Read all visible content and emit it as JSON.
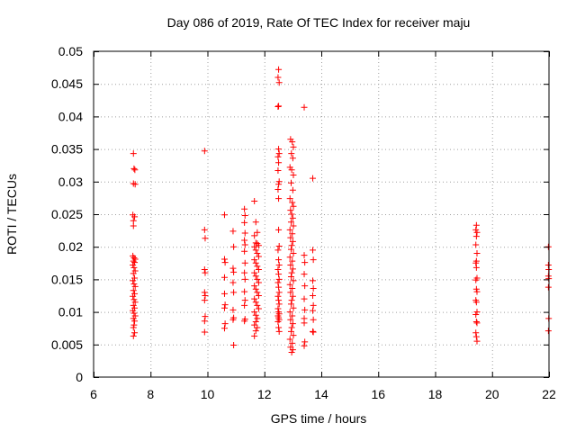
{
  "chart_data": {
    "type": "scatter",
    "title": "Day 086 of 2019, Rate Of TEC Index for receiver maju",
    "xlabel": "GPS time / hours",
    "ylabel": "ROTI / TECUs",
    "xlim": [
      6,
      22
    ],
    "ylim": [
      0,
      0.05
    ],
    "grid": true,
    "marker": "plus",
    "color": "#ff0000",
    "x_ticks": [
      6,
      8,
      10,
      12,
      14,
      16,
      18,
      20,
      22
    ],
    "x_tick_labels": [
      "6",
      "8",
      "10",
      "12",
      "14",
      "16",
      "18",
      "20",
      "22"
    ],
    "y_ticks": [
      0,
      0.005,
      0.01,
      0.015,
      0.02,
      0.025,
      0.03,
      0.035,
      0.04,
      0.045,
      0.05
    ],
    "y_tick_labels": [
      "0",
      "0.005",
      "0.01",
      "0.015",
      "0.02",
      "0.025",
      "0.03",
      "0.035",
      "0.04",
      "0.045",
      "0.05"
    ],
    "series": [
      {
        "name": "ROTI",
        "points": [
          [
            7.4,
            0.0343
          ],
          [
            7.42,
            0.032
          ],
          [
            7.45,
            0.0318
          ],
          [
            7.4,
            0.0297
          ],
          [
            7.46,
            0.0296
          ],
          [
            7.38,
            0.0249
          ],
          [
            7.44,
            0.0246
          ],
          [
            7.4,
            0.024
          ],
          [
            7.4,
            0.0232
          ],
          [
            7.38,
            0.0186
          ],
          [
            7.42,
            0.0183
          ],
          [
            7.46,
            0.0181
          ],
          [
            7.4,
            0.0178
          ],
          [
            7.44,
            0.0176
          ],
          [
            7.38,
            0.0172
          ],
          [
            7.42,
            0.0168
          ],
          [
            7.46,
            0.0163
          ],
          [
            7.4,
            0.0159
          ],
          [
            7.44,
            0.0152
          ],
          [
            7.38,
            0.0148
          ],
          [
            7.42,
            0.0143
          ],
          [
            7.46,
            0.0139
          ],
          [
            7.4,
            0.0133
          ],
          [
            7.44,
            0.0128
          ],
          [
            7.38,
            0.0124
          ],
          [
            7.42,
            0.0119
          ],
          [
            7.46,
            0.0115
          ],
          [
            7.4,
            0.011
          ],
          [
            7.44,
            0.0106
          ],
          [
            7.38,
            0.0102
          ],
          [
            7.42,
            0.0098
          ],
          [
            7.46,
            0.0094
          ],
          [
            7.4,
            0.009
          ],
          [
            7.44,
            0.0086
          ],
          [
            7.42,
            0.008
          ],
          [
            7.4,
            0.0076
          ],
          [
            7.44,
            0.0068
          ],
          [
            7.4,
            0.0063
          ],
          [
            9.9,
            0.0347
          ],
          [
            9.9,
            0.0226
          ],
          [
            9.92,
            0.0213
          ],
          [
            9.9,
            0.0165
          ],
          [
            9.92,
            0.016
          ],
          [
            9.9,
            0.013
          ],
          [
            9.92,
            0.0125
          ],
          [
            9.9,
            0.0118
          ],
          [
            9.92,
            0.0093
          ],
          [
            9.9,
            0.0086
          ],
          [
            9.9,
            0.0069
          ],
          [
            10.6,
            0.0249
          ],
          [
            10.6,
            0.0181
          ],
          [
            10.62,
            0.0176
          ],
          [
            10.6,
            0.0153
          ],
          [
            10.6,
            0.0128
          ],
          [
            10.62,
            0.0111
          ],
          [
            10.6,
            0.0106
          ],
          [
            10.62,
            0.0082
          ],
          [
            10.6,
            0.0075
          ],
          [
            10.9,
            0.0224
          ],
          [
            10.92,
            0.02
          ],
          [
            10.9,
            0.0167
          ],
          [
            10.92,
            0.0161
          ],
          [
            10.9,
            0.0145
          ],
          [
            10.92,
            0.013
          ],
          [
            10.9,
            0.0103
          ],
          [
            10.92,
            0.0091
          ],
          [
            10.9,
            0.0088
          ],
          [
            10.92,
            0.0049
          ],
          [
            11.3,
            0.0258
          ],
          [
            11.32,
            0.0248
          ],
          [
            11.3,
            0.0237
          ],
          [
            11.32,
            0.0221
          ],
          [
            11.3,
            0.021
          ],
          [
            11.32,
            0.0203
          ],
          [
            11.3,
            0.0193
          ],
          [
            11.32,
            0.0175
          ],
          [
            11.3,
            0.016
          ],
          [
            11.32,
            0.015
          ],
          [
            11.3,
            0.0131
          ],
          [
            11.32,
            0.0118
          ],
          [
            11.3,
            0.011
          ],
          [
            11.32,
            0.0089
          ],
          [
            11.3,
            0.0086
          ],
          [
            11.65,
            0.027
          ],
          [
            11.7,
            0.0238
          ],
          [
            11.75,
            0.0222
          ],
          [
            11.65,
            0.0217
          ],
          [
            11.7,
            0.0206
          ],
          [
            11.75,
            0.0205
          ],
          [
            11.8,
            0.0202
          ],
          [
            11.65,
            0.02
          ],
          [
            11.7,
            0.0195
          ],
          [
            11.75,
            0.019
          ],
          [
            11.8,
            0.0185
          ],
          [
            11.65,
            0.018
          ],
          [
            11.7,
            0.0175
          ],
          [
            11.75,
            0.017
          ],
          [
            11.8,
            0.0165
          ],
          [
            11.65,
            0.016
          ],
          [
            11.7,
            0.0155
          ],
          [
            11.75,
            0.015
          ],
          [
            11.8,
            0.0145
          ],
          [
            11.65,
            0.014
          ],
          [
            11.7,
            0.0135
          ],
          [
            11.75,
            0.013
          ],
          [
            11.8,
            0.0125
          ],
          [
            11.65,
            0.012
          ],
          [
            11.7,
            0.0115
          ],
          [
            11.75,
            0.011
          ],
          [
            11.8,
            0.0105
          ],
          [
            11.65,
            0.01
          ],
          [
            11.7,
            0.0095
          ],
          [
            11.75,
            0.009
          ],
          [
            11.7,
            0.0085
          ],
          [
            11.65,
            0.008
          ],
          [
            11.75,
            0.0076
          ],
          [
            11.7,
            0.0071
          ],
          [
            11.65,
            0.0063
          ],
          [
            12.5,
            0.0472
          ],
          [
            12.48,
            0.046
          ],
          [
            12.52,
            0.0452
          ],
          [
            12.5,
            0.0416
          ],
          [
            12.48,
            0.0415
          ],
          [
            12.5,
            0.035
          ],
          [
            12.52,
            0.0343
          ],
          [
            12.48,
            0.0338
          ],
          [
            12.5,
            0.0329
          ],
          [
            12.48,
            0.0317
          ],
          [
            12.52,
            0.03
          ],
          [
            12.5,
            0.0296
          ],
          [
            12.48,
            0.0288
          ],
          [
            12.5,
            0.0274
          ],
          [
            12.5,
            0.0226
          ],
          [
            12.52,
            0.0201
          ],
          [
            12.48,
            0.0195
          ],
          [
            12.5,
            0.018
          ],
          [
            12.52,
            0.0172
          ],
          [
            12.48,
            0.0165
          ],
          [
            12.5,
            0.0158
          ],
          [
            12.52,
            0.015
          ],
          [
            12.48,
            0.0145
          ],
          [
            12.5,
            0.0138
          ],
          [
            12.52,
            0.013
          ],
          [
            12.48,
            0.0124
          ],
          [
            12.5,
            0.0118
          ],
          [
            12.52,
            0.0112
          ],
          [
            12.48,
            0.0105
          ],
          [
            12.5,
            0.01
          ],
          [
            12.52,
            0.0097
          ],
          [
            12.48,
            0.0094
          ],
          [
            12.5,
            0.0091
          ],
          [
            12.52,
            0.0088
          ],
          [
            12.48,
            0.0085
          ],
          [
            12.5,
            0.0076
          ],
          [
            12.52,
            0.007
          ],
          [
            12.92,
            0.0365
          ],
          [
            12.98,
            0.0361
          ],
          [
            13.02,
            0.0353
          ],
          [
            12.95,
            0.0343
          ],
          [
            13.0,
            0.0336
          ],
          [
            12.9,
            0.0322
          ],
          [
            12.96,
            0.0318
          ],
          [
            13.02,
            0.031
          ],
          [
            12.94,
            0.0298
          ],
          [
            13.0,
            0.0287
          ],
          [
            12.9,
            0.0274
          ],
          [
            12.98,
            0.0268
          ],
          [
            13.02,
            0.0262
          ],
          [
            12.92,
            0.0256
          ],
          [
            12.96,
            0.025
          ],
          [
            13.0,
            0.0244
          ],
          [
            12.94,
            0.0238
          ],
          [
            13.02,
            0.0232
          ],
          [
            12.9,
            0.0226
          ],
          [
            12.98,
            0.022
          ],
          [
            12.92,
            0.0214
          ],
          [
            13.0,
            0.0208
          ],
          [
            12.96,
            0.0202
          ],
          [
            12.94,
            0.0196
          ],
          [
            13.02,
            0.019
          ],
          [
            12.9,
            0.0184
          ],
          [
            12.98,
            0.0178
          ],
          [
            12.92,
            0.0172
          ],
          [
            13.0,
            0.0166
          ],
          [
            12.96,
            0.016
          ],
          [
            12.94,
            0.0154
          ],
          [
            13.02,
            0.0148
          ],
          [
            12.9,
            0.0142
          ],
          [
            12.98,
            0.0136
          ],
          [
            12.92,
            0.013
          ],
          [
            13.0,
            0.0124
          ],
          [
            12.96,
            0.0118
          ],
          [
            12.94,
            0.0112
          ],
          [
            13.02,
            0.0106
          ],
          [
            12.9,
            0.01
          ],
          [
            12.98,
            0.0094
          ],
          [
            12.92,
            0.0088
          ],
          [
            13.0,
            0.0082
          ],
          [
            12.96,
            0.0076
          ],
          [
            12.94,
            0.007
          ],
          [
            13.02,
            0.0064
          ],
          [
            12.9,
            0.0058
          ],
          [
            12.98,
            0.0052
          ],
          [
            12.92,
            0.0046
          ],
          [
            13.0,
            0.0042
          ],
          [
            12.96,
            0.0038
          ],
          [
            13.4,
            0.0414
          ],
          [
            13.4,
            0.0187
          ],
          [
            13.42,
            0.0176
          ],
          [
            13.4,
            0.0158
          ],
          [
            13.42,
            0.014
          ],
          [
            13.4,
            0.012
          ],
          [
            13.42,
            0.0103
          ],
          [
            13.4,
            0.009
          ],
          [
            13.4,
            0.0083
          ],
          [
            13.42,
            0.0054
          ],
          [
            13.4,
            0.0048
          ],
          [
            13.7,
            0.0305
          ],
          [
            13.7,
            0.0195
          ],
          [
            13.72,
            0.018
          ],
          [
            13.7,
            0.0148
          ],
          [
            13.72,
            0.0136
          ],
          [
            13.7,
            0.0125
          ],
          [
            13.72,
            0.011
          ],
          [
            13.7,
            0.0102
          ],
          [
            13.72,
            0.0088
          ],
          [
            13.7,
            0.007
          ],
          [
            13.72,
            0.0069
          ],
          [
            19.45,
            0.0233
          ],
          [
            19.43,
            0.0226
          ],
          [
            19.47,
            0.0222
          ],
          [
            19.45,
            0.0216
          ],
          [
            19.43,
            0.0203
          ],
          [
            19.47,
            0.019
          ],
          [
            19.45,
            0.0178
          ],
          [
            19.43,
            0.0175
          ],
          [
            19.45,
            0.0168
          ],
          [
            19.47,
            0.0152
          ],
          [
            19.43,
            0.0149
          ],
          [
            19.45,
            0.0135
          ],
          [
            19.47,
            0.0131
          ],
          [
            19.43,
            0.0118
          ],
          [
            19.45,
            0.0115
          ],
          [
            19.47,
            0.01
          ],
          [
            19.43,
            0.0096
          ],
          [
            19.45,
            0.0085
          ],
          [
            19.47,
            0.0083
          ],
          [
            19.43,
            0.0068
          ],
          [
            19.45,
            0.0062
          ],
          [
            19.47,
            0.0055
          ],
          [
            21.98,
            0.02
          ],
          [
            21.98,
            0.0172
          ],
          [
            21.99,
            0.0165
          ],
          [
            21.98,
            0.0155
          ],
          [
            21.99,
            0.0151
          ],
          [
            21.98,
            0.0138
          ],
          [
            21.99,
            0.009
          ],
          [
            21.98,
            0.0071
          ]
        ]
      }
    ]
  }
}
